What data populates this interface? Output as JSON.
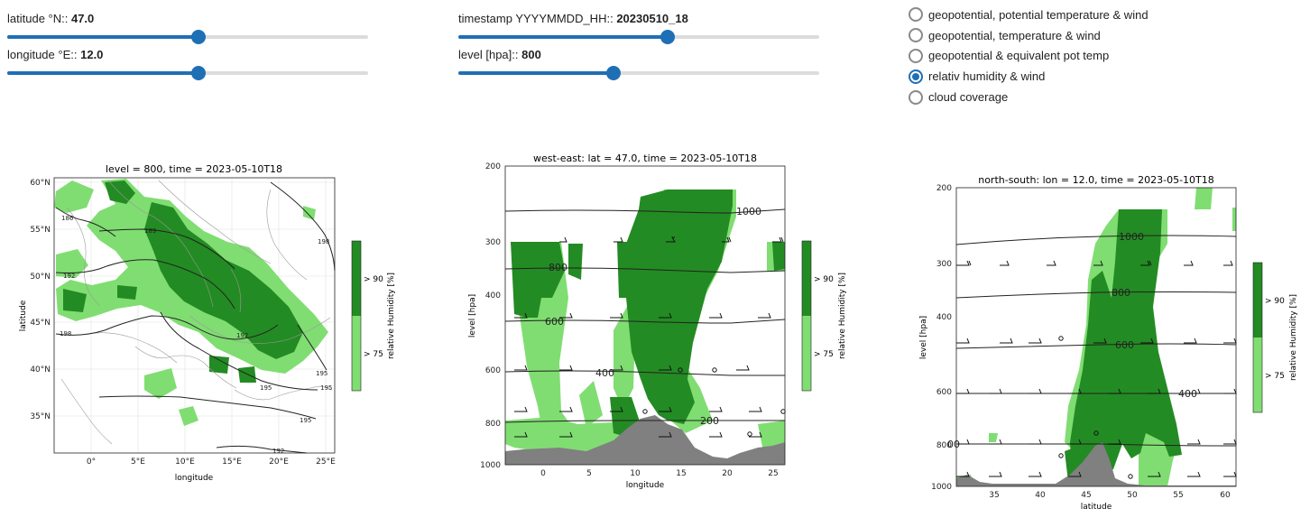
{
  "controls": {
    "latitude": {
      "label": "latitude °N::",
      "value": "47.0",
      "fraction": 0.53
    },
    "longitude": {
      "label": "longitude °E::",
      "value": "12.0",
      "fraction": 0.53
    },
    "timestamp": {
      "label": "timestamp YYYYMMDD_HH::",
      "value": "20230510_18",
      "fraction": 0.58
    },
    "level": {
      "label": "level [hpa]::",
      "value": "800",
      "fraction": 0.43
    }
  },
  "map_options": {
    "items": [
      {
        "label": "geopotential, potential temperature & wind",
        "checked": false
      },
      {
        "label": "geopotential, temperature & wind",
        "checked": false
      },
      {
        "label": "geopotential & equivalent pot temp",
        "checked": false
      },
      {
        "label": "relativ humidity & wind",
        "checked": true
      },
      {
        "label": "cloud coverage",
        "checked": false
      }
    ]
  },
  "colors": {
    "accent": "#1f6fb5",
    "rh_gt90": "#238b23",
    "rh_gt75": "#80dd72",
    "terrain": "#808080"
  },
  "plot_map": {
    "title": "level = 800, time = 2023-05-10T18",
    "xlabel": "longitude",
    "ylabel": "latitude",
    "xticks": [
      "0°",
      "5°E",
      "10°E",
      "15°E",
      "20°E",
      "25°E"
    ],
    "yticks": [
      "60°N",
      "55°N",
      "50°N",
      "45°N",
      "40°N",
      "35°N"
    ],
    "contour_labels": [
      "186",
      "189",
      "198",
      "192",
      "198",
      "192",
      "195",
      "195",
      "195",
      "192",
      "195"
    ],
    "colorbar": {
      "label": "relative Humidity [%]",
      "ticks": [
        "> 90",
        "> 75"
      ]
    }
  },
  "plot_we": {
    "title": "west-east: lat = 47.0, time = 2023-05-10T18",
    "xlabel": "longitude",
    "ylabel": "level [hpa]",
    "xticks": [
      "0",
      "5",
      "10",
      "15",
      "20",
      "25"
    ],
    "yticks": [
      "200",
      "300",
      "400",
      "600",
      "800",
      "1000"
    ],
    "contour_labels": [
      "1000",
      "800",
      "600",
      "400",
      "200"
    ],
    "colorbar": {
      "label": "relative Humidity [%]",
      "ticks": [
        "> 90",
        "> 75"
      ]
    }
  },
  "plot_ns": {
    "title": "north-south: lon = 12.0, time = 2023-05-10T18",
    "xlabel": "latitude",
    "ylabel": "level [hpa]",
    "xticks": [
      "35",
      "40",
      "45",
      "50",
      "55",
      "60"
    ],
    "yticks": [
      "200",
      "300",
      "400",
      "600",
      "800",
      "1000"
    ],
    "contour_labels": [
      "1000",
      "800",
      "600",
      "400",
      "00"
    ],
    "colorbar": {
      "label": "relative Humidity [%]",
      "ticks": [
        "> 90",
        "> 75"
      ]
    }
  }
}
